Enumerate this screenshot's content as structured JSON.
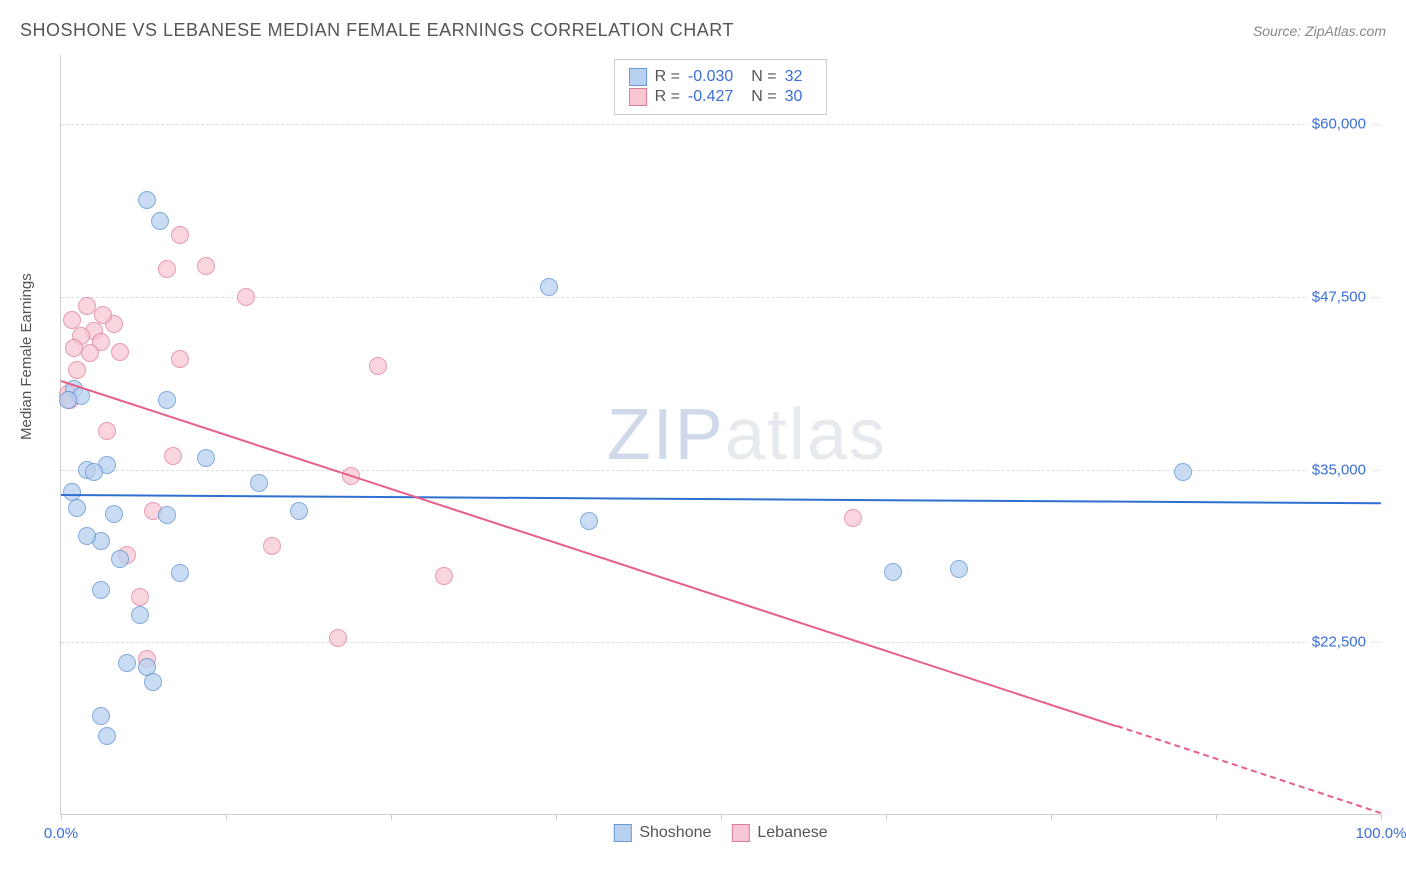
{
  "header": {
    "title": "SHOSHONE VS LEBANESE MEDIAN FEMALE EARNINGS CORRELATION CHART",
    "source_prefix": "Source: ",
    "source_name": "ZipAtlas.com"
  },
  "axes": {
    "ylabel": "Median Female Earnings",
    "y_min": 10000,
    "y_max": 65000,
    "y_ticks": [
      22500,
      35000,
      47500,
      60000
    ],
    "y_tick_labels": [
      "$22,500",
      "$35,000",
      "$47,500",
      "$60,000"
    ],
    "x_min": 0,
    "x_max": 100,
    "x_ticks": [
      0,
      12.5,
      25,
      37.5,
      50,
      62.5,
      75,
      87.5,
      100
    ],
    "x_tick_labels": {
      "0": "0.0%",
      "100": "100.0%"
    }
  },
  "watermark": {
    "part1": "ZIP",
    "part2": "atlas"
  },
  "legend_top": {
    "r_label": "R =",
    "n_label": "N =",
    "series": [
      {
        "swatch_fill": "#b9d1f0",
        "swatch_border": "#6a9ad8",
        "r": "-0.030",
        "n": "32"
      },
      {
        "swatch_fill": "#f7c7d4",
        "swatch_border": "#e07a9a",
        "r": "-0.427",
        "n": "30"
      }
    ]
  },
  "legend_bottom": {
    "items": [
      {
        "swatch_fill": "#b9d1f0",
        "swatch_border": "#6a9ad8",
        "label": "Shoshone"
      },
      {
        "swatch_fill": "#f7c7d4",
        "swatch_border": "#e07a9a",
        "label": "Lebanese"
      }
    ]
  },
  "series": {
    "shoshone": {
      "fill": "#b9d1f0",
      "stroke": "#5a8fd0",
      "line_color": "#2f6fd0",
      "trend": {
        "x1": 0,
        "y1": 33200,
        "x2": 100,
        "y2": 32600
      },
      "points": [
        {
          "x": 6.5,
          "y": 54500
        },
        {
          "x": 7.5,
          "y": 53000
        },
        {
          "x": 37,
          "y": 48200
        },
        {
          "x": 1,
          "y": 40800
        },
        {
          "x": 1.5,
          "y": 40300
        },
        {
          "x": 8,
          "y": 40000
        },
        {
          "x": 2,
          "y": 35000
        },
        {
          "x": 3.5,
          "y": 35300
        },
        {
          "x": 11,
          "y": 35800
        },
        {
          "x": 2.5,
          "y": 34800
        },
        {
          "x": 15,
          "y": 34000
        },
        {
          "x": 85,
          "y": 34800
        },
        {
          "x": 4,
          "y": 31800
        },
        {
          "x": 8,
          "y": 31700
        },
        {
          "x": 18,
          "y": 32000
        },
        {
          "x": 40,
          "y": 31300
        },
        {
          "x": 3,
          "y": 29800
        },
        {
          "x": 2,
          "y": 30200
        },
        {
          "x": 9,
          "y": 27500
        },
        {
          "x": 63,
          "y": 27600
        },
        {
          "x": 68,
          "y": 27800
        },
        {
          "x": 3,
          "y": 26300
        },
        {
          "x": 5,
          "y": 21000
        },
        {
          "x": 6.5,
          "y": 20700
        },
        {
          "x": 7,
          "y": 19600
        },
        {
          "x": 3,
          "y": 17200
        },
        {
          "x": 3.5,
          "y": 15700
        },
        {
          "x": 0.8,
          "y": 33400
        },
        {
          "x": 1.2,
          "y": 32200
        },
        {
          "x": 4.5,
          "y": 28500
        },
        {
          "x": 6,
          "y": 24500
        },
        {
          "x": 0.5,
          "y": 40000
        }
      ]
    },
    "lebanese": {
      "fill": "#f7c7d4",
      "stroke": "#e07a9a",
      "line_color": "#e85f89",
      "trend": {
        "x1": 0,
        "y1": 41500,
        "x2": 80,
        "y2": 16500
      },
      "trend_ext": {
        "x1": 80,
        "y1": 16500,
        "x2": 100,
        "y2": 10200
      },
      "points": [
        {
          "x": 9,
          "y": 52000
        },
        {
          "x": 8,
          "y": 49500
        },
        {
          "x": 11,
          "y": 49700
        },
        {
          "x": 14,
          "y": 47500
        },
        {
          "x": 2,
          "y": 46800
        },
        {
          "x": 2.5,
          "y": 45000
        },
        {
          "x": 4,
          "y": 45500
        },
        {
          "x": 1.5,
          "y": 44700
        },
        {
          "x": 3,
          "y": 44200
        },
        {
          "x": 4.5,
          "y": 43500
        },
        {
          "x": 9,
          "y": 43000
        },
        {
          "x": 1,
          "y": 43800
        },
        {
          "x": 24,
          "y": 42500
        },
        {
          "x": 0.5,
          "y": 40500
        },
        {
          "x": 0.7,
          "y": 40000
        },
        {
          "x": 3.5,
          "y": 37800
        },
        {
          "x": 8.5,
          "y": 36000
        },
        {
          "x": 22,
          "y": 34500
        },
        {
          "x": 7,
          "y": 32000
        },
        {
          "x": 60,
          "y": 31500
        },
        {
          "x": 16,
          "y": 29500
        },
        {
          "x": 5,
          "y": 28800
        },
        {
          "x": 29,
          "y": 27300
        },
        {
          "x": 6,
          "y": 25800
        },
        {
          "x": 21,
          "y": 22800
        },
        {
          "x": 6.5,
          "y": 21300
        },
        {
          "x": 1.2,
          "y": 42200
        },
        {
          "x": 2.2,
          "y": 43400
        },
        {
          "x": 3.2,
          "y": 46200
        },
        {
          "x": 0.8,
          "y": 45800
        }
      ]
    }
  },
  "styling": {
    "background": "#ffffff",
    "grid_color": "#dddddd",
    "axis_color": "#cccccc",
    "tick_label_color": "#3a6fd8",
    "title_color": "#555555",
    "point_radius": 9,
    "point_opacity": 0.75,
    "line_width": 2
  }
}
